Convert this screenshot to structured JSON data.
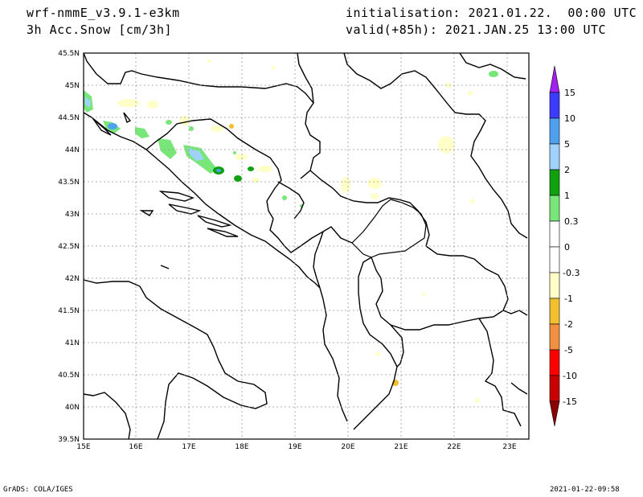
{
  "header": {
    "model": "wrf-nmmE_v3.9.1-e3km",
    "field": "3h Acc.Snow [cm/3h]",
    "init": "initialisation: 2021.01.22.  00:00 UTC",
    "valid": "valid(+85h): 2021.JAN.25 13:00 UTC"
  },
  "axes": {
    "lon_labels": [
      "15E",
      "16E",
      "17E",
      "18E",
      "19E",
      "20E",
      "21E",
      "22E",
      "23E"
    ],
    "lat_labels": [
      "45.5N",
      "45N",
      "44.5N",
      "44N",
      "43.5N",
      "43N",
      "42.5N",
      "42N",
      "41.5N",
      "41N",
      "40.5N",
      "40N",
      "39.5N"
    ]
  },
  "colorbar": {
    "labels": [
      "15",
      "10",
      "5",
      "2",
      "1",
      "0.3",
      "0",
      "-0.3",
      "-1",
      "-2",
      "-5",
      "-10",
      "-15"
    ],
    "colors": [
      "#a020f0",
      "#3c3cff",
      "#50a0f0",
      "#a0d2ff",
      "#10a010",
      "#78e678",
      "#ffffff",
      "#ffffc8",
      "#f0c030",
      "#f09040",
      "#ff0000",
      "#c80000",
      "#8c0000"
    ]
  },
  "footer": {
    "left": "GrADS: COLA/IGES",
    "right": "2021-01-22-09:58"
  }
}
